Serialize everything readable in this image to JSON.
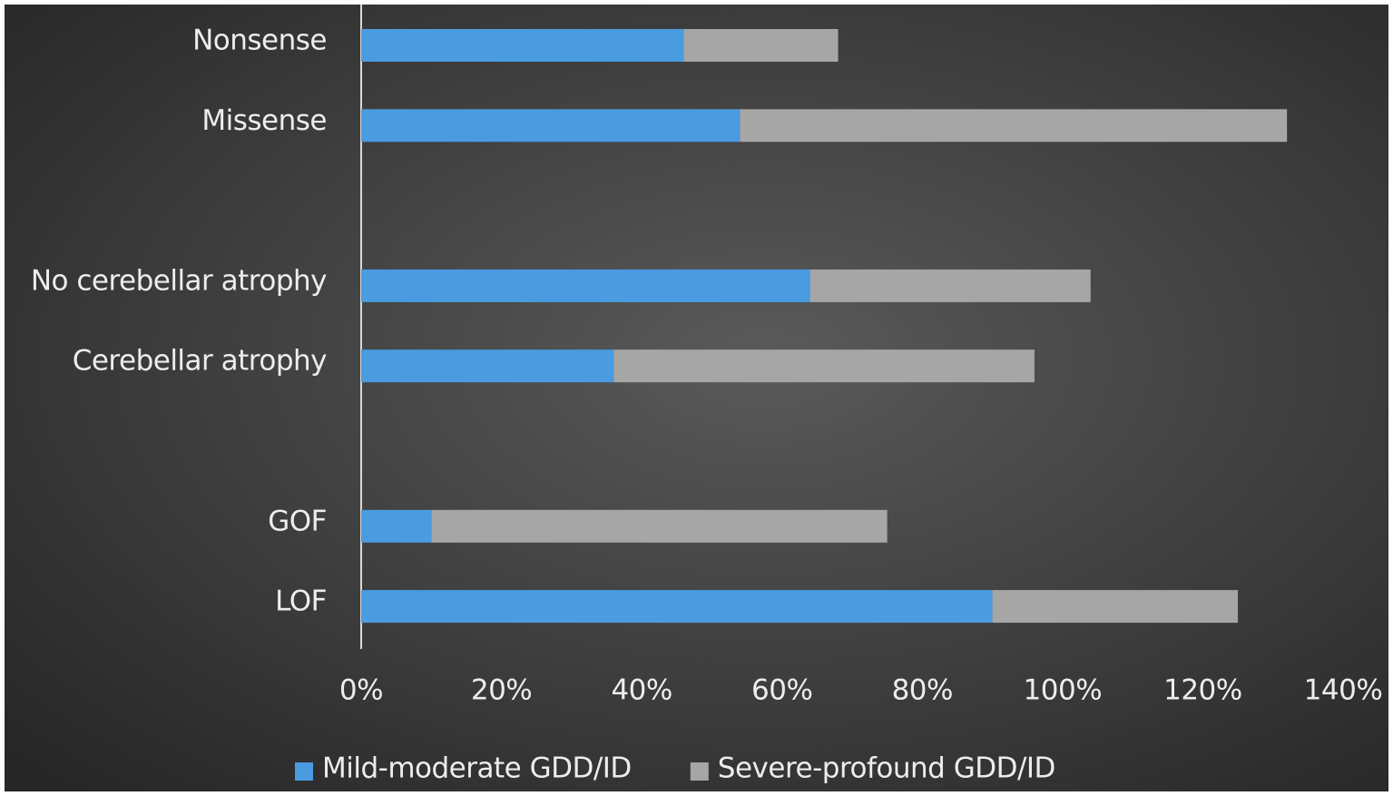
{
  "chart_data": {
    "type": "stacked-bar-horizontal",
    "categories": [
      "Nonsense",
      "Missense",
      null,
      "No cerebellar atrophy",
      "Cerebellar atrophy",
      null,
      "GOF",
      "LOF"
    ],
    "series": [
      {
        "name": "Mild-moderate GDD/ID",
        "color": "#4a9be0",
        "values": [
          46,
          54,
          null,
          64,
          36,
          null,
          10,
          90
        ]
      },
      {
        "name": "Severe-profound GDD/ID",
        "color": "#a6a6a6",
        "values": [
          22,
          78,
          null,
          40,
          60,
          null,
          65,
          35
        ]
      }
    ],
    "xlim": [
      0,
      140
    ],
    "xticks": [
      {
        "value": 0,
        "label": "0%"
      },
      {
        "value": 20,
        "label": "20%"
      },
      {
        "value": 40,
        "label": "40%"
      },
      {
        "value": 60,
        "label": "60%"
      },
      {
        "value": 80,
        "label": "80%"
      },
      {
        "value": 100,
        "label": "100%"
      },
      {
        "value": 120,
        "label": "120%"
      },
      {
        "value": 140,
        "label": "140%"
      }
    ],
    "legend": "bottom"
  }
}
